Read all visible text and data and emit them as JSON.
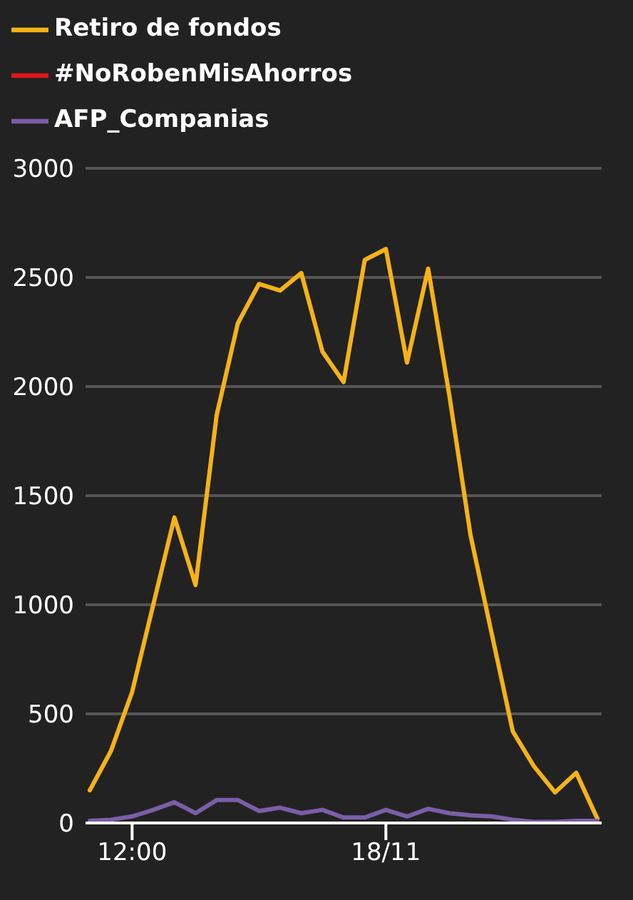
{
  "chart_data": {
    "type": "line",
    "categories": [
      null,
      null,
      "12:00",
      null,
      null,
      null,
      null,
      null,
      null,
      null,
      null,
      null,
      null,
      null,
      "18/11",
      null,
      null,
      null,
      null,
      null,
      null,
      null,
      null,
      null,
      null
    ],
    "ylim": [
      0,
      3000
    ],
    "yticks": [
      0,
      500,
      1000,
      1500,
      2000,
      2500,
      3000
    ],
    "grid": "y",
    "legend": "top left",
    "series": [
      {
        "name": "Retiro de fondos",
        "color": "#f5b316",
        "values": [
          150,
          330,
          600,
          1000,
          1400,
          1090,
          1870,
          2290,
          2470,
          2440,
          2520,
          2160,
          2020,
          2580,
          2630,
          2110,
          2540,
          1960,
          1320,
          870,
          420,
          260,
          140,
          230,
          20
        ]
      },
      {
        "name": "#NoRobenMisAhorros",
        "color": "#e0161d",
        "values": [
          null,
          null,
          null,
          null,
          null,
          null,
          null,
          null,
          null,
          null,
          null,
          null,
          null,
          null,
          null,
          null,
          null,
          null,
          null,
          null,
          null,
          null,
          null,
          null,
          null
        ]
      },
      {
        "name": "AFP_Companias",
        "color": "#7b5ea7",
        "values": [
          10,
          15,
          30,
          60,
          95,
          45,
          105,
          105,
          55,
          70,
          45,
          60,
          25,
          25,
          60,
          30,
          65,
          45,
          35,
          30,
          15,
          5,
          5,
          10,
          10
        ]
      }
    ]
  }
}
